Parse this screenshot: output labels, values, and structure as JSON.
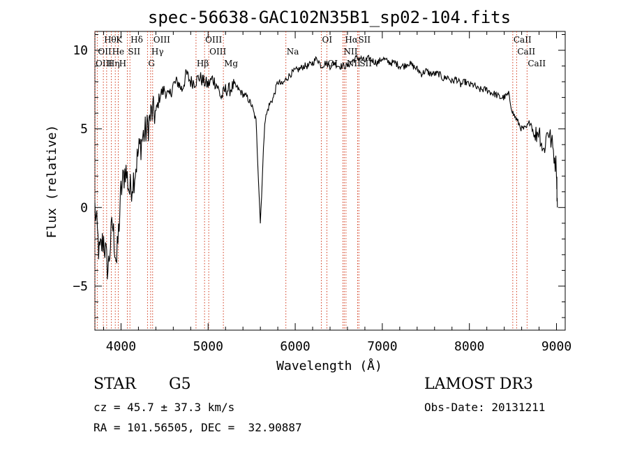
{
  "chart_data": {
    "type": "line",
    "title": "spec-56638-GAC102N35B1_sp02-104.fits",
    "xlabel": "Wavelength (Å)",
    "ylabel": "Flux (relative)",
    "xlim": [
      3700,
      9100
    ],
    "ylim": [
      -7.8,
      11.2
    ],
    "x_ticks": [
      4000,
      5000,
      6000,
      7000,
      8000,
      9000
    ],
    "x_tick_labels": [
      "4000",
      "5000",
      "6000",
      "7000",
      "8000",
      "9000"
    ],
    "y_ticks": [
      -5,
      0,
      5,
      10
    ],
    "y_tick_labels": [
      "−5",
      "0",
      "5",
      "10"
    ],
    "grid": false,
    "series": [
      {
        "name": "spectrum",
        "x": [
          3700,
          3750,
          3800,
          3850,
          3900,
          3950,
          4000,
          4050,
          4100,
          4150,
          4200,
          4250,
          4300,
          4350,
          4400,
          4450,
          4500,
          4550,
          4600,
          4650,
          4700,
          4750,
          4800,
          4850,
          4900,
          4950,
          5000,
          5050,
          5100,
          5150,
          5200,
          5250,
          5300,
          5350,
          5400,
          5450,
          5500,
          5550,
          5600,
          5650,
          5700,
          5750,
          5800,
          5850,
          5900,
          5950,
          6000,
          6050,
          6100,
          6150,
          6200,
          6250,
          6300,
          6350,
          6400,
          6450,
          6500,
          6550,
          6600,
          6650,
          6700,
          6750,
          6800,
          6850,
          6900,
          6950,
          7000,
          7050,
          7100,
          7150,
          7200,
          7250,
          7300,
          7350,
          7400,
          7450,
          7500,
          7550,
          7600,
          7650,
          7700,
          7750,
          7800,
          7850,
          7900,
          7950,
          8000,
          8050,
          8100,
          8150,
          8200,
          8250,
          8300,
          8350,
          8400,
          8450,
          8500,
          8550,
          8600,
          8650,
          8700,
          8750,
          8800,
          8850,
          8900,
          8950,
          9000,
          9010
        ],
        "y": [
          0.0,
          -3.0,
          -2.0,
          -4.0,
          -1.0,
          -3.5,
          1.0,
          2.5,
          1.0,
          2.0,
          3.5,
          4.5,
          5.0,
          6.0,
          6.0,
          7.2,
          7.5,
          7.0,
          7.8,
          8.0,
          7.5,
          8.5,
          8.0,
          8.0,
          8.3,
          8.0,
          7.8,
          8.2,
          7.8,
          7.0,
          7.5,
          7.5,
          7.8,
          7.5,
          7.2,
          7.0,
          6.5,
          5.5,
          -1.0,
          5.5,
          6.5,
          7.0,
          8.0,
          7.8,
          8.2,
          8.5,
          8.7,
          8.8,
          9.0,
          9.0,
          9.2,
          9.5,
          9.0,
          9.2,
          9.0,
          9.2,
          9.0,
          9.0,
          9.0,
          9.3,
          9.5,
          9.5,
          9.3,
          9.5,
          9.3,
          9.2,
          9.5,
          9.3,
          9.2,
          9.2,
          9.0,
          9.0,
          9.2,
          9.0,
          8.8,
          8.5,
          8.7,
          8.5,
          8.5,
          8.5,
          8.2,
          8.3,
          8.0,
          8.2,
          7.8,
          8.0,
          7.8,
          7.8,
          7.5,
          7.5,
          7.5,
          7.3,
          7.2,
          7.0,
          7.0,
          7.2,
          6.0,
          5.5,
          5.0,
          5.0,
          5.5,
          4.5,
          5.0,
          3.5,
          5.0,
          4.0,
          2.5,
          0.0
        ]
      }
    ],
    "spectral_lines": [
      {
        "label": "Hθ",
        "wavelength": 3797,
        "row": 0
      },
      {
        "label": "K",
        "wavelength": 3934,
        "row": 0
      },
      {
        "label": "Hδ",
        "wavelength": 4102,
        "row": 0
      },
      {
        "label": "OII",
        "wavelength": 3727,
        "row": 1
      },
      {
        "label": "He",
        "wavelength": 3889,
        "row": 1
      },
      {
        "label": "SII",
        "wavelength": 4072,
        "row": 1
      },
      {
        "label": "OIII",
        "wavelength": 3700,
        "row": 2
      },
      {
        "label": "Hη",
        "wavelength": 3835,
        "row": 2
      },
      {
        "label": "H",
        "wavelength": 3969,
        "row": 2
      },
      {
        "label": "OIII",
        "wavelength": 4363,
        "row": 0
      },
      {
        "label": "Hγ",
        "wavelength": 4340,
        "row": 1
      },
      {
        "label": "G",
        "wavelength": 4304,
        "row": 2
      },
      {
        "label": "OIII",
        "wavelength": 4959,
        "row": 0
      },
      {
        "label": "OIII",
        "wavelength": 5007,
        "row": 1
      },
      {
        "label": "Hβ",
        "wavelength": 4861,
        "row": 2
      },
      {
        "label": "Mg",
        "wavelength": 5175,
        "row": 2
      },
      {
        "label": "Na",
        "wavelength": 5893,
        "row": 1
      },
      {
        "label": "OI",
        "wavelength": 6300,
        "row": 0
      },
      {
        "label": "OI",
        "wavelength": 6364,
        "row": 2
      },
      {
        "label": "Hα",
        "wavelength": 6563,
        "row": 0
      },
      {
        "label": "NII",
        "wavelength": 6548,
        "row": 1
      },
      {
        "label": "NII",
        "wavelength": 6583,
        "row": 2
      },
      {
        "label": "SII",
        "wavelength": 6716,
        "row": 0
      },
      {
        "label": "SII",
        "wavelength": 6731,
        "row": 2
      },
      {
        "label": "CaII",
        "wavelength": 8498,
        "row": 0
      },
      {
        "label": "CaII",
        "wavelength": 8542,
        "row": 1
      },
      {
        "label": "CaII",
        "wavelength": 8662,
        "row": 2
      }
    ]
  },
  "info": {
    "class": "STAR",
    "subclass": "G5",
    "survey": "LAMOST DR3",
    "cz": "cz = 45.7 ± 37.3 km/s",
    "obs_date": "Obs-Date: 20131211",
    "coords": "RA = 101.56505, DEC =  32.90887"
  },
  "colors": {
    "line": "#000000",
    "marker": "#cc2200",
    "text": "#000000"
  }
}
